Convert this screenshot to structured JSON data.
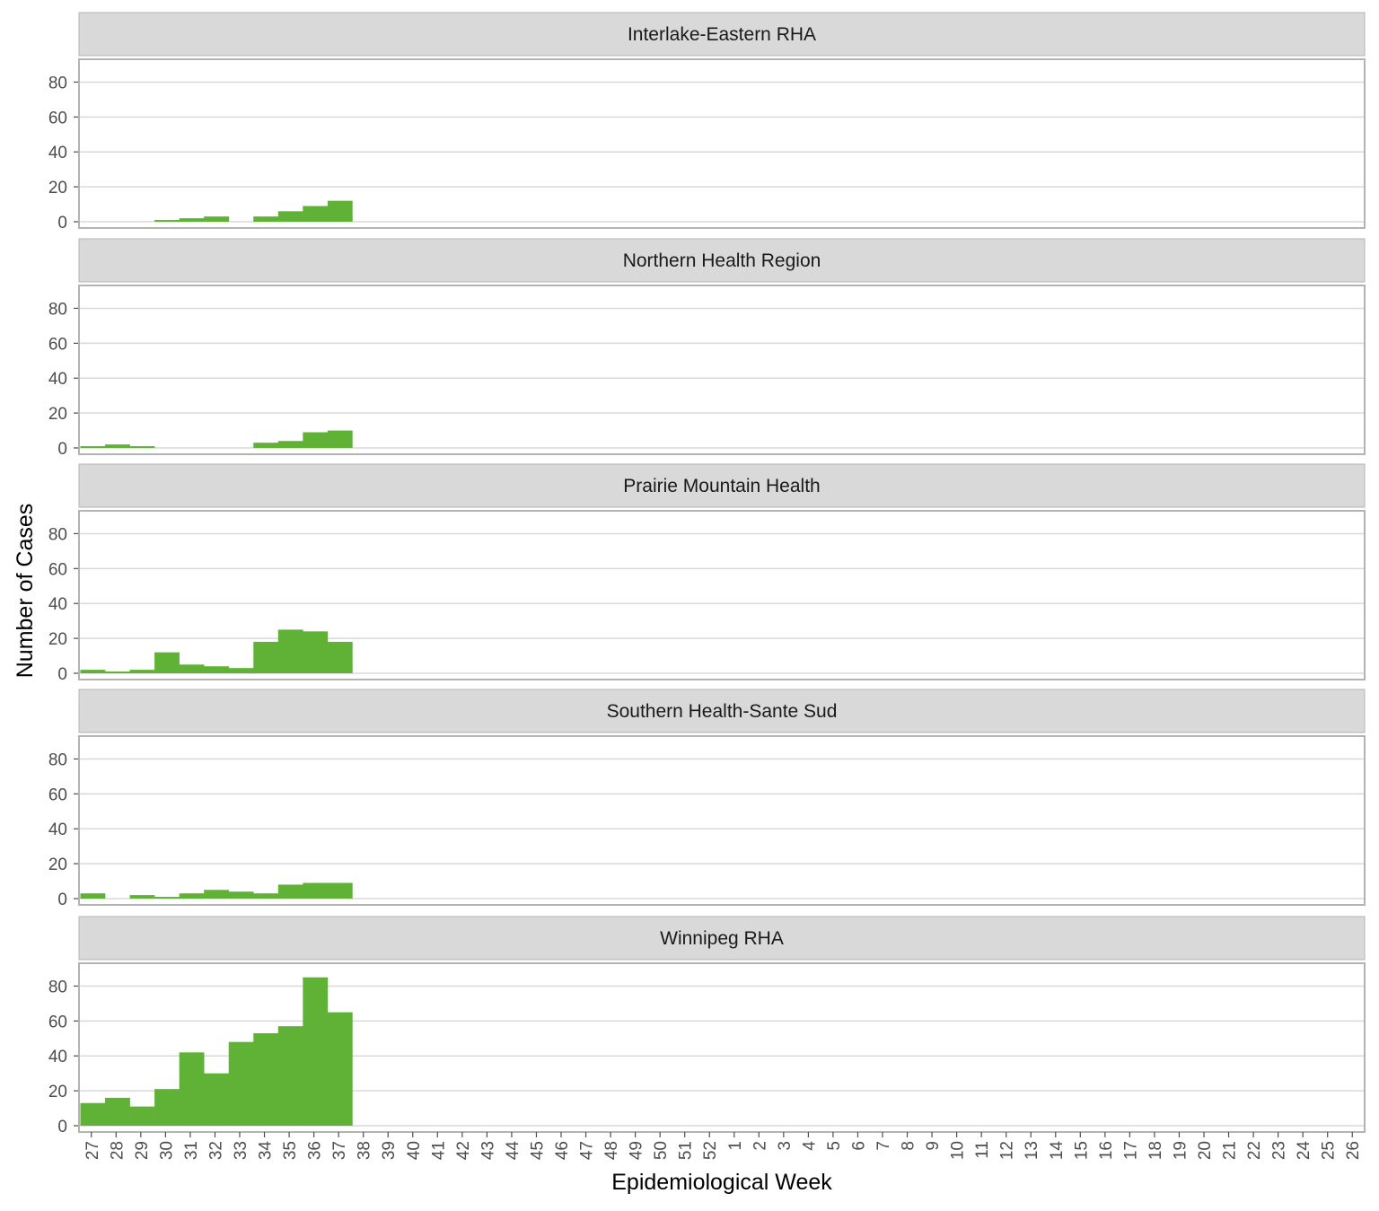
{
  "chart_data": {
    "type": "bar",
    "xlabel": "Epidemiological Week",
    "ylabel": "Number of Cases",
    "ylim": [
      0,
      90
    ],
    "yticks": [
      0,
      20,
      40,
      60,
      80
    ],
    "grid": true,
    "categories": [
      "27",
      "28",
      "29",
      "30",
      "31",
      "32",
      "33",
      "34",
      "35",
      "36",
      "37",
      "38",
      "39",
      "40",
      "41",
      "42",
      "43",
      "44",
      "45",
      "46",
      "47",
      "48",
      "49",
      "50",
      "51",
      "52",
      "1",
      "2",
      "3",
      "4",
      "5",
      "6",
      "7",
      "8",
      "9",
      "10",
      "11",
      "12",
      "13",
      "14",
      "15",
      "16",
      "17",
      "18",
      "19",
      "20",
      "21",
      "22",
      "23",
      "24",
      "25",
      "26"
    ],
    "series": [
      {
        "name": "Interlake-Eastern RHA",
        "values": [
          0,
          0,
          0,
          1,
          2,
          3,
          0,
          3,
          6,
          9,
          12,
          0,
          0,
          0,
          0,
          0,
          0,
          0,
          0,
          0,
          0,
          0,
          0,
          0,
          0,
          0,
          0,
          0,
          0,
          0,
          0,
          0,
          0,
          0,
          0,
          0,
          0,
          0,
          0,
          0,
          0,
          0,
          0,
          0,
          0,
          0,
          0,
          0,
          0,
          0,
          0,
          0
        ]
      },
      {
        "name": "Northern Health Region",
        "values": [
          1,
          2,
          1,
          0,
          0,
          0,
          0,
          3,
          4,
          9,
          10,
          0,
          0,
          0,
          0,
          0,
          0,
          0,
          0,
          0,
          0,
          0,
          0,
          0,
          0,
          0,
          0,
          0,
          0,
          0,
          0,
          0,
          0,
          0,
          0,
          0,
          0,
          0,
          0,
          0,
          0,
          0,
          0,
          0,
          0,
          0,
          0,
          0,
          0,
          0,
          0,
          0
        ]
      },
      {
        "name": "Prairie Mountain Health",
        "values": [
          2,
          1,
          2,
          12,
          5,
          4,
          3,
          18,
          25,
          24,
          18,
          0,
          0,
          0,
          0,
          0,
          0,
          0,
          0,
          0,
          0,
          0,
          0,
          0,
          0,
          0,
          0,
          0,
          0,
          0,
          0,
          0,
          0,
          0,
          0,
          0,
          0,
          0,
          0,
          0,
          0,
          0,
          0,
          0,
          0,
          0,
          0,
          0,
          0,
          0,
          0,
          0
        ]
      },
      {
        "name": "Southern Health-Sante Sud",
        "values": [
          3,
          0,
          2,
          1,
          3,
          5,
          4,
          3,
          8,
          9,
          9,
          0,
          0,
          0,
          0,
          0,
          0,
          0,
          0,
          0,
          0,
          0,
          0,
          0,
          0,
          0,
          0,
          0,
          0,
          0,
          0,
          0,
          0,
          0,
          0,
          0,
          0,
          0,
          0,
          0,
          0,
          0,
          0,
          0,
          0,
          0,
          0,
          0,
          0,
          0,
          0,
          0
        ]
      },
      {
        "name": "Winnipeg RHA",
        "values": [
          13,
          16,
          11,
          21,
          42,
          30,
          48,
          53,
          57,
          85,
          65,
          0,
          0,
          0,
          0,
          0,
          0,
          0,
          0,
          0,
          0,
          0,
          0,
          0,
          0,
          0,
          0,
          0,
          0,
          0,
          0,
          0,
          0,
          0,
          0,
          0,
          0,
          0,
          0,
          0,
          0,
          0,
          0,
          0,
          0,
          0,
          0,
          0,
          0,
          0,
          0,
          0
        ]
      }
    ],
    "colors": {
      "bar": "#5fb236",
      "strip_fill": "#d9d9d9",
      "panel_border": "#b3b3b3",
      "grid": "#d9d9d9"
    }
  }
}
